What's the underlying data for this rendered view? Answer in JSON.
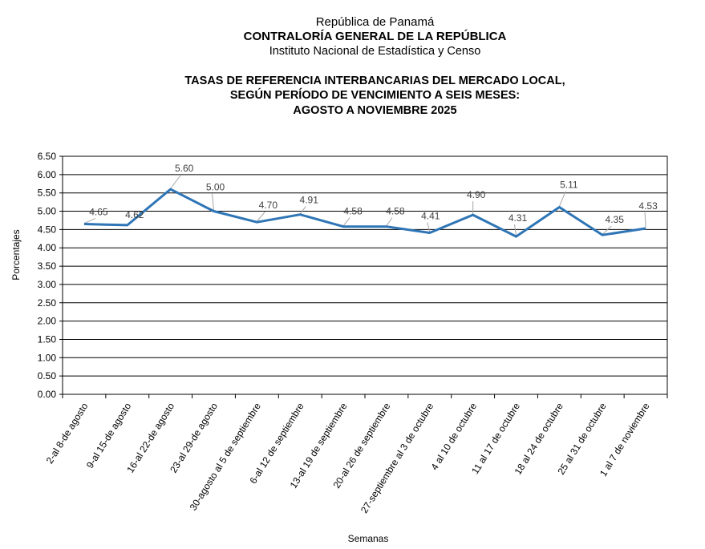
{
  "header": {
    "country": "República de Panamá",
    "agency": "CONTRALORÍA GENERAL DE LA REPÚBLICA",
    "institute": "Instituto  Nacional de Estadística  y Censo"
  },
  "chart_data": {
    "type": "line",
    "title_lines": [
      "TASAS DE REFERENCIA INTERBANCARIAS DEL MERCADO LOCAL,",
      "SEGÚN PERÍODO DE VENCIMIENTO A SEIS MESES:",
      "AGOSTO  A NOVIEMBRE 2025"
    ],
    "xlabel": "Semanas",
    "ylabel": "Porcentajes",
    "ylim": [
      0,
      6.5
    ],
    "ytick_step": 0.5,
    "yticks": [
      "0.00",
      "0.50",
      "1.00",
      "1.50",
      "2.00",
      "2.50",
      "3.00",
      "3.50",
      "4.00",
      "4.50",
      "5.00",
      "5.50",
      "6.00",
      "6.50"
    ],
    "grid": true,
    "line_color": "#2E75B6",
    "categories": [
      "2-al 8-de agosto",
      "9-al 15-de agosto",
      "16-al 22-de agosto",
      "23-al 29-de agosto",
      "30-agosto al 5 de septiembre",
      "6-al 12 de septiembre",
      "13-al 19 de septiembre",
      "20-al 26 de septiembre",
      "27-septiembre al 3 de octubre",
      "4 al 10 de octubre",
      "11 al 17 de octubre",
      "18 al 24 de octubre",
      "25 al 31 de octubre",
      "1 al 7 de noviembre"
    ],
    "values": [
      4.65,
      4.62,
      5.6,
      5.0,
      4.7,
      4.91,
      4.58,
      4.58,
      4.41,
      4.9,
      4.31,
      5.11,
      4.35,
      4.53
    ],
    "data_labels": [
      "4.65",
      "4.62",
      "5.60",
      "5.00",
      "4.70",
      "4.91",
      "4.58",
      "4.58",
      "4.41",
      "4.90",
      "4.31",
      "5.11",
      "4.35",
      "4.53"
    ]
  }
}
